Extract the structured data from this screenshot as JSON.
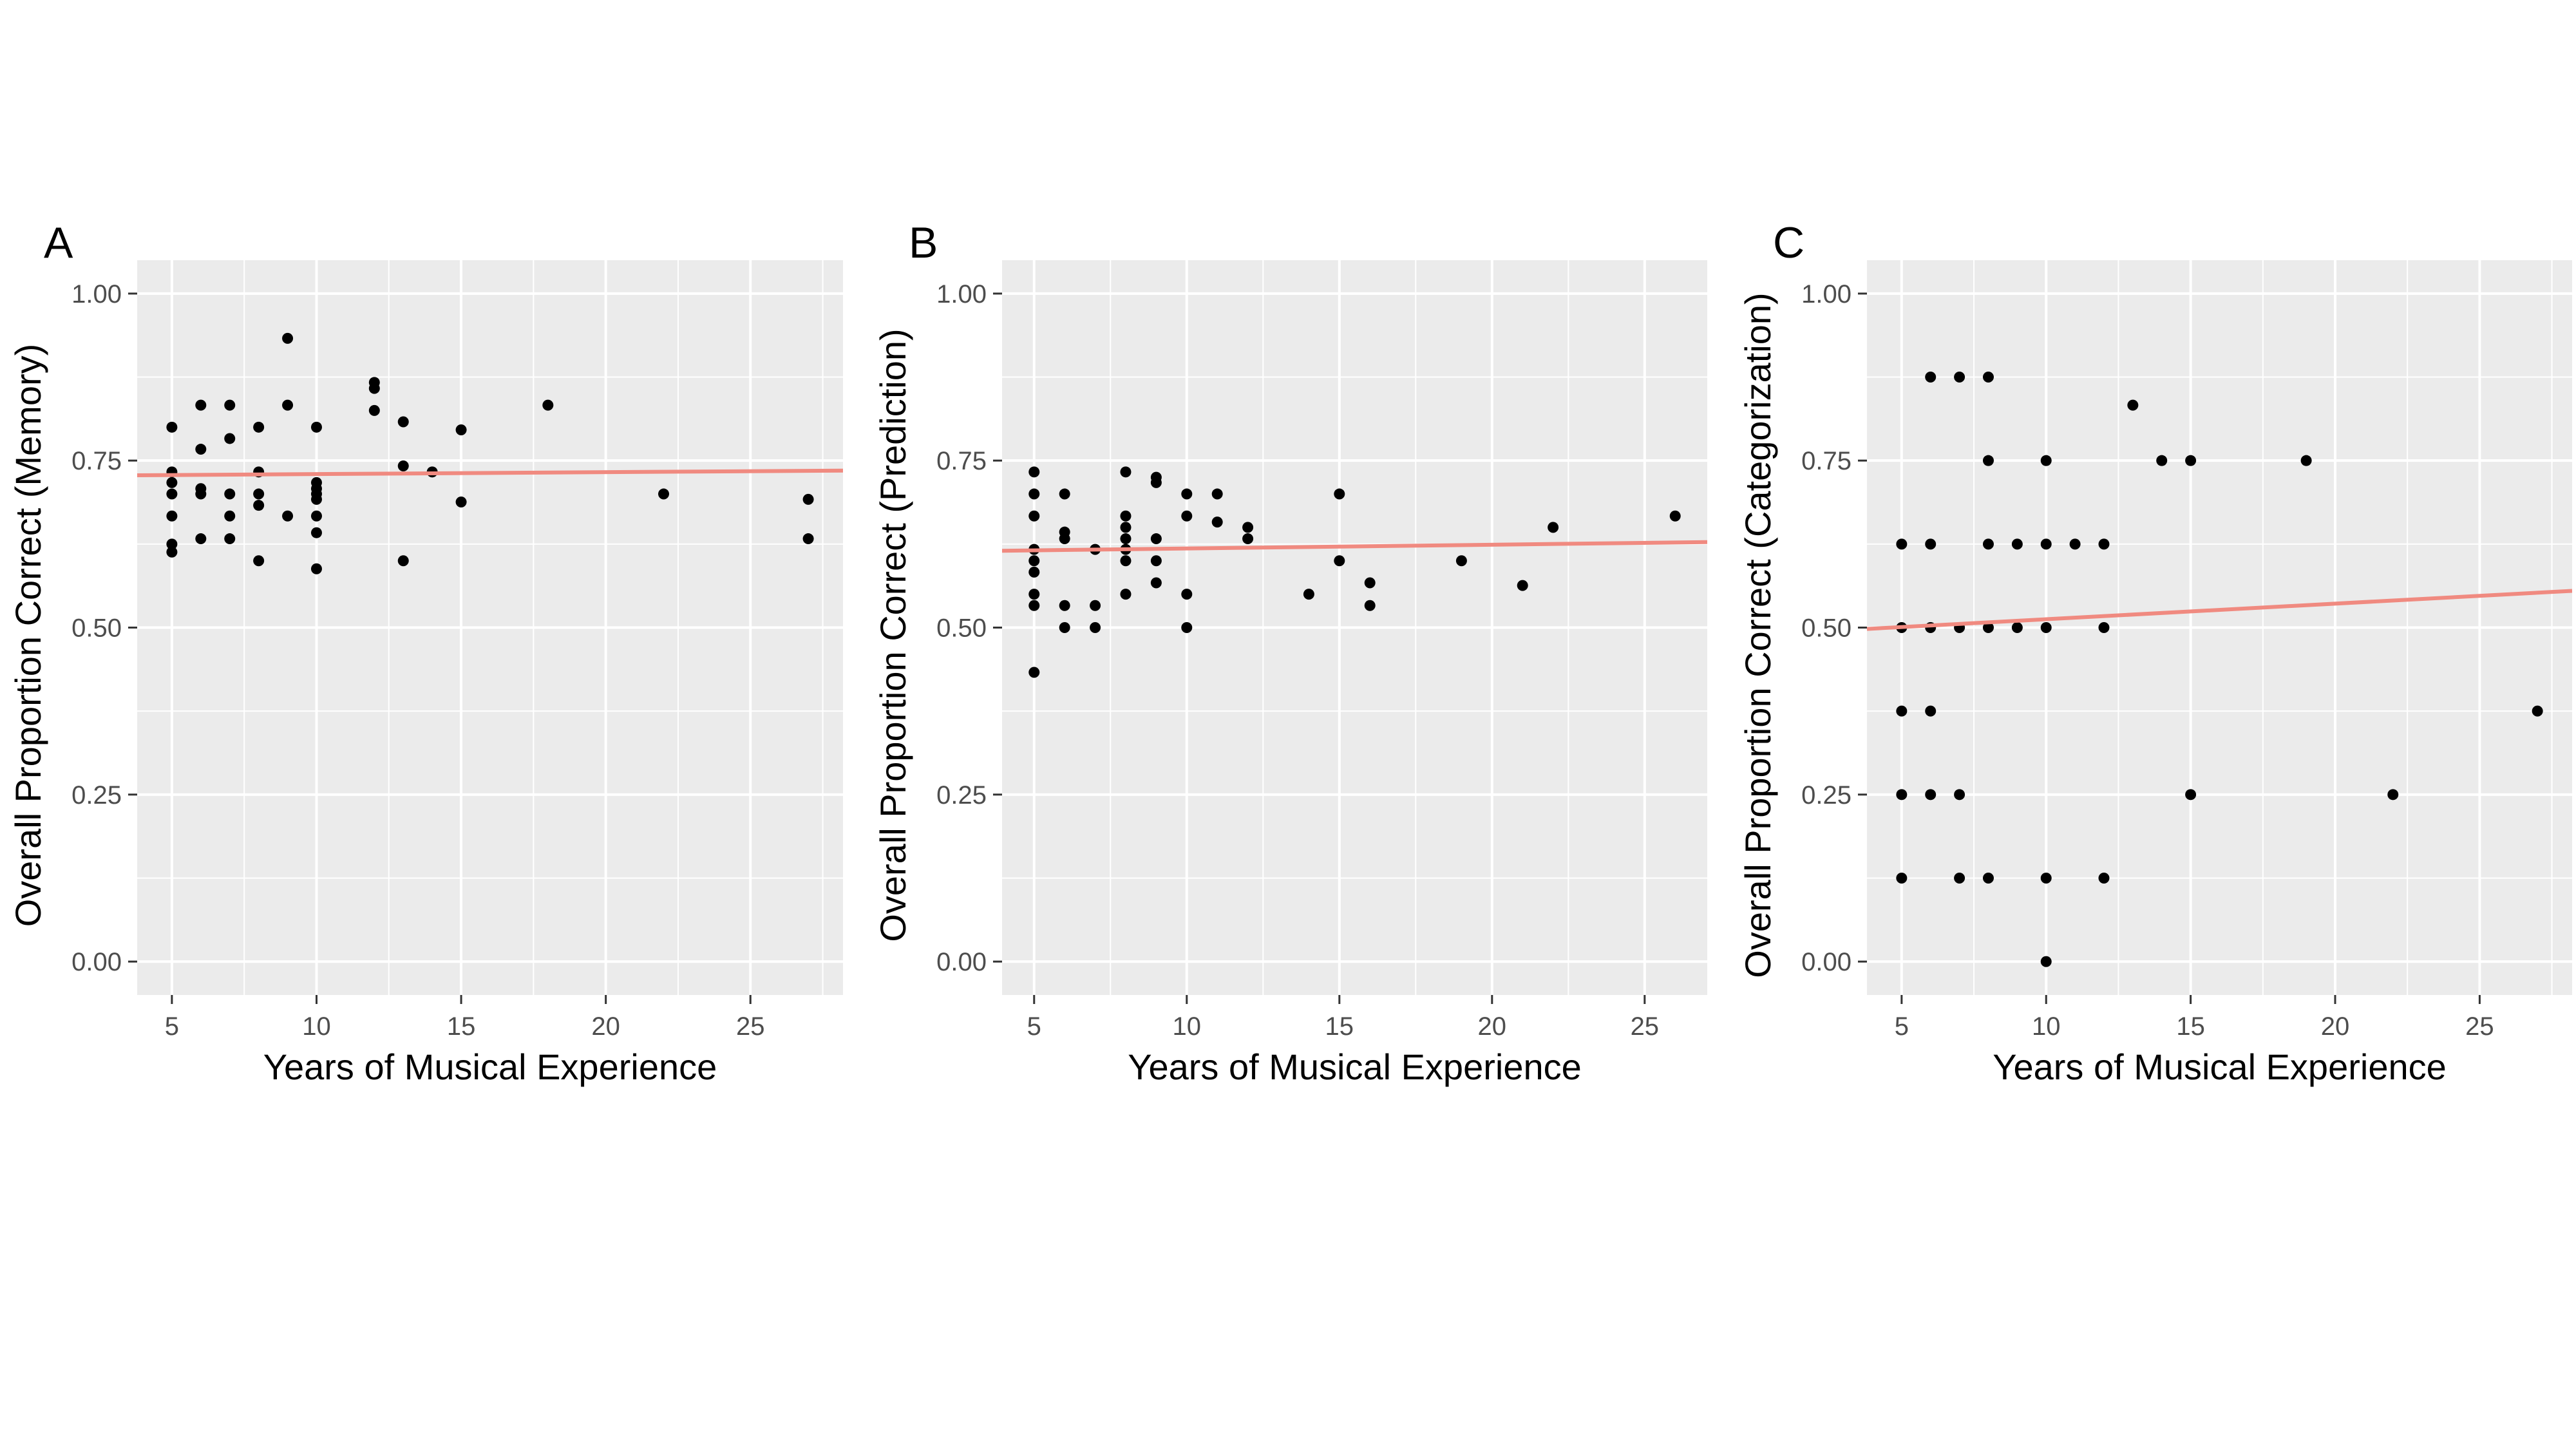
{
  "colors": {
    "panel_bg": "#ebebeb",
    "grid": "#ffffff",
    "point": "#000000",
    "fit_line": "#f08a80",
    "tick": "#333333"
  },
  "chart_data": [
    {
      "type": "scatter",
      "tag": "A",
      "xlabel": "Years of Musical Experience",
      "ylabel": "Overall Proportion Correct (Memory)",
      "xlim": [
        3.8,
        28.2
      ],
      "ylim": [
        -0.05,
        1.05
      ],
      "xticks": [
        5,
        10,
        15,
        20,
        25
      ],
      "xtick_labels": [
        "5",
        "10",
        "15",
        "20",
        "25"
      ],
      "yticks": [
        0,
        0.25,
        0.5,
        0.75,
        1
      ],
      "ytick_labels": [
        "0.00",
        "0.25",
        "0.50",
        "0.75",
        "1.00"
      ],
      "fit_line": {
        "x": [
          3.8,
          28.2
        ],
        "y": [
          0.728,
          0.735
        ]
      },
      "points": [
        [
          5,
          0.8
        ],
        [
          5,
          0.733
        ],
        [
          5,
          0.717
        ],
        [
          5,
          0.7
        ],
        [
          5,
          0.667
        ],
        [
          5,
          0.625
        ],
        [
          5,
          0.613
        ],
        [
          6,
          0.833
        ],
        [
          6,
          0.767
        ],
        [
          6,
          0.708
        ],
        [
          6,
          0.7
        ],
        [
          6,
          0.633
        ],
        [
          7,
          0.833
        ],
        [
          7,
          0.783
        ],
        [
          7,
          0.7
        ],
        [
          7,
          0.667
        ],
        [
          7,
          0.633
        ],
        [
          8,
          0.8
        ],
        [
          8,
          0.733
        ],
        [
          8,
          0.7
        ],
        [
          8,
          0.683
        ],
        [
          8,
          0.6
        ],
        [
          9,
          0.933
        ],
        [
          9,
          0.833
        ],
        [
          9,
          0.667
        ],
        [
          10,
          0.8
        ],
        [
          10,
          0.717
        ],
        [
          10,
          0.708
        ],
        [
          10,
          0.7
        ],
        [
          10,
          0.692
        ],
        [
          10,
          0.667
        ],
        [
          10,
          0.642
        ],
        [
          10,
          0.588
        ],
        [
          12,
          0.867
        ],
        [
          12,
          0.858
        ],
        [
          12,
          0.825
        ],
        [
          13,
          0.808
        ],
        [
          13,
          0.742
        ],
        [
          13,
          0.6
        ],
        [
          14,
          0.733
        ],
        [
          15,
          0.796
        ],
        [
          15,
          0.688
        ],
        [
          18,
          0.833
        ],
        [
          22,
          0.7
        ],
        [
          27,
          0.692
        ],
        [
          27,
          0.633
        ]
      ]
    },
    {
      "type": "scatter",
      "tag": "B",
      "xlabel": "Years of Musical Experience",
      "ylabel": "Overall Proportion Correct (Prediction)",
      "xlim": [
        3.95,
        27.05
      ],
      "ylim": [
        -0.05,
        1.05
      ],
      "xticks": [
        5,
        10,
        15,
        20,
        25
      ],
      "xtick_labels": [
        "5",
        "10",
        "15",
        "20",
        "25"
      ],
      "yticks": [
        0,
        0.25,
        0.5,
        0.75,
        1
      ],
      "ytick_labels": [
        "0.00",
        "0.25",
        "0.50",
        "0.75",
        "1.00"
      ],
      "fit_line": {
        "x": [
          3.95,
          27.05
        ],
        "y": [
          0.615,
          0.628
        ]
      },
      "points": [
        [
          5,
          0.733
        ],
        [
          5,
          0.7
        ],
        [
          5,
          0.667
        ],
        [
          5,
          0.617
        ],
        [
          5,
          0.6
        ],
        [
          5,
          0.583
        ],
        [
          5,
          0.55
        ],
        [
          5,
          0.533
        ],
        [
          5,
          0.433
        ],
        [
          6,
          0.7
        ],
        [
          6,
          0.643
        ],
        [
          6,
          0.633
        ],
        [
          6,
          0.533
        ],
        [
          6,
          0.5
        ],
        [
          7,
          0.617
        ],
        [
          7,
          0.533
        ],
        [
          7,
          0.5
        ],
        [
          8,
          0.733
        ],
        [
          8,
          0.667
        ],
        [
          8,
          0.65
        ],
        [
          8,
          0.633
        ],
        [
          8,
          0.617
        ],
        [
          8,
          0.6
        ],
        [
          8,
          0.55
        ],
        [
          9,
          0.725
        ],
        [
          9,
          0.717
        ],
        [
          9,
          0.633
        ],
        [
          9,
          0.6
        ],
        [
          9,
          0.567
        ],
        [
          10,
          0.7
        ],
        [
          10,
          0.667
        ],
        [
          10,
          0.55
        ],
        [
          10,
          0.5
        ],
        [
          11,
          0.7
        ],
        [
          11,
          0.658
        ],
        [
          12,
          0.65
        ],
        [
          12,
          0.633
        ],
        [
          14,
          0.55
        ],
        [
          15,
          0.7
        ],
        [
          15,
          0.6
        ],
        [
          16,
          0.567
        ],
        [
          16,
          0.533
        ],
        [
          19,
          0.6
        ],
        [
          21,
          0.563
        ],
        [
          22,
          0.65
        ],
        [
          26,
          0.667
        ]
      ]
    },
    {
      "type": "scatter",
      "tag": "C",
      "xlabel": "Years of Musical Experience",
      "ylabel": "Overall Proportion Correct (Categorization)",
      "xlim": [
        3.8,
        28.2
      ],
      "ylim": [
        -0.05,
        1.05
      ],
      "xticks": [
        5,
        10,
        15,
        20,
        25
      ],
      "xtick_labels": [
        "5",
        "10",
        "15",
        "20",
        "25"
      ],
      "yticks": [
        0,
        0.25,
        0.5,
        0.75,
        1
      ],
      "ytick_labels": [
        "0.00",
        "0.25",
        "0.50",
        "0.75",
        "1.00"
      ],
      "fit_line": {
        "x": [
          3.8,
          28.2
        ],
        "y": [
          0.498,
          0.555
        ]
      },
      "points": [
        [
          5,
          0.625
        ],
        [
          5,
          0.5
        ],
        [
          5,
          0.375
        ],
        [
          5,
          0.25
        ],
        [
          5,
          0.125
        ],
        [
          6,
          0.875
        ],
        [
          6,
          0.625
        ],
        [
          6,
          0.5
        ],
        [
          6,
          0.375
        ],
        [
          6,
          0.25
        ],
        [
          7,
          0.875
        ],
        [
          7,
          0.5
        ],
        [
          7,
          0.25
        ],
        [
          7,
          0.125
        ],
        [
          8,
          0.875
        ],
        [
          8,
          0.75
        ],
        [
          8,
          0.625
        ],
        [
          8,
          0.5
        ],
        [
          8,
          0.125
        ],
        [
          9,
          0.625
        ],
        [
          9,
          0.5
        ],
        [
          10,
          0.75
        ],
        [
          10,
          0.625
        ],
        [
          10,
          0.5
        ],
        [
          10,
          0.125
        ],
        [
          10,
          0.0
        ],
        [
          11,
          0.625
        ],
        [
          12,
          0.625
        ],
        [
          12,
          0.5
        ],
        [
          12,
          0.125
        ],
        [
          13,
          0.833
        ],
        [
          14,
          0.75
        ],
        [
          15,
          0.75
        ],
        [
          15,
          0.25
        ],
        [
          19,
          0.75
        ],
        [
          22,
          0.25
        ],
        [
          27,
          0.375
        ]
      ]
    }
  ]
}
